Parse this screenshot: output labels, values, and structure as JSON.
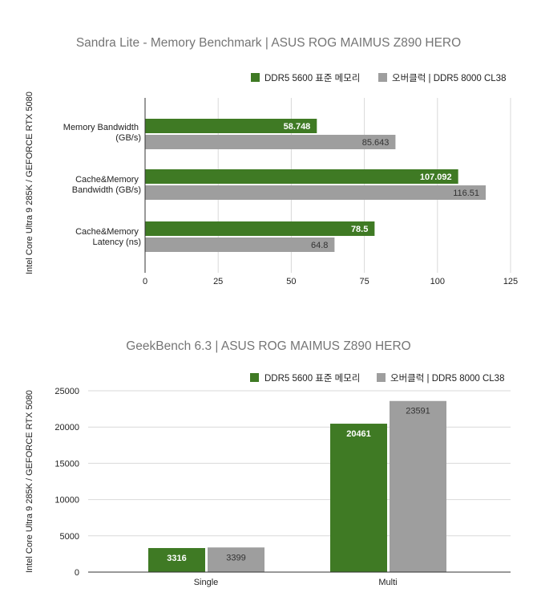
{
  "colors": {
    "green": "#3f7a24",
    "grey": "#9e9e9e",
    "grid": "#d9d9d9"
  },
  "chart_data": [
    {
      "type": "bar",
      "orientation": "horizontal",
      "title": "Sandra Lite - Memory Benchmark | ASUS ROG MAIMUS Z890 HERO",
      "ylabel": "Intel Core Ultra 9 285K / GEFORCE RTX 5080",
      "xlabel": "",
      "categories": [
        [
          "Memory Bandwidth",
          "(GB/s)"
        ],
        [
          "Cache&Memory",
          "Bandwidth (GB/s)"
        ],
        [
          "Cache&Memory",
          "Latency (ns)"
        ]
      ],
      "series": [
        {
          "name": "DDR5 5600 표준 메모리",
          "color": "#3f7a24",
          "values": [
            58.748,
            107.092,
            78.5
          ],
          "labels": [
            "58.748",
            "107.092",
            "78.5"
          ]
        },
        {
          "name": "오버클럭 | DDR5 8000 CL38",
          "color": "#9e9e9e",
          "values": [
            85.643,
            116.51,
            64.8
          ],
          "labels": [
            "85.643",
            "116.51",
            "64.8"
          ]
        }
      ],
      "xlim": [
        0,
        125
      ],
      "ticks": [
        0,
        25,
        50,
        75,
        100,
        125
      ],
      "tick_labels": [
        "0",
        "25",
        "50",
        "75",
        "100",
        "125"
      ],
      "grid": true,
      "legend": "top-right"
    },
    {
      "type": "bar",
      "orientation": "vertical",
      "title": "GeekBench 6.3 | ASUS ROG MAIMUS Z890 HERO",
      "ylabel": "Intel Core Ultra 9 285K / GEFORCE RTX 5080",
      "xlabel": "",
      "categories": [
        "Single",
        "Multi"
      ],
      "series": [
        {
          "name": "DDR5 5600 표준 메모리",
          "color": "#3f7a24",
          "values": [
            3316,
            20461
          ],
          "labels": [
            "3316",
            "20461"
          ]
        },
        {
          "name": "오버클럭 | DDR5 8000 CL38",
          "color": "#9e9e9e",
          "values": [
            3399,
            23591
          ],
          "labels": [
            "3399",
            "23591"
          ]
        }
      ],
      "ylim": [
        0,
        25000
      ],
      "ticks": [
        0,
        5000,
        10000,
        15000,
        20000,
        25000
      ],
      "tick_labels": [
        "0",
        "5000",
        "10000",
        "15000",
        "20000",
        "25000"
      ],
      "grid": true,
      "legend": "top-right"
    }
  ]
}
